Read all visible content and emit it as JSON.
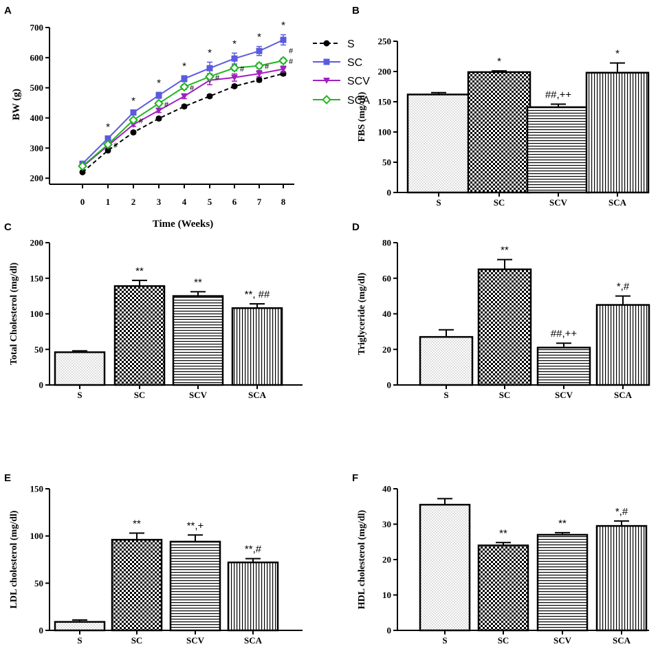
{
  "colors": {
    "S": "#000000",
    "SC": "#5b5bde",
    "SCV": "#a020c0",
    "SCA": "#22b522",
    "axis": "#000000"
  },
  "chart_data": [
    {
      "panel": "A",
      "type": "line",
      "xlabel": "Time (Weeks)",
      "ylabel": "BW (g)",
      "x": [
        0,
        1,
        2,
        3,
        4,
        5,
        6,
        7,
        8
      ],
      "x_ticks": [
        "0",
        "1",
        "2",
        "3",
        "4",
        "5",
        "6",
        "7",
        "8"
      ],
      "ylim": [
        180,
        700
      ],
      "y_ticks": [
        "200",
        "300",
        "400",
        "500",
        "600",
        "700"
      ],
      "legend_position": "right",
      "series": [
        {
          "name": "S",
          "marker": "circle",
          "dashed": true,
          "values": [
            220,
            292,
            352,
            398,
            438,
            472,
            505,
            526,
            547
          ],
          "errors": [
            4,
            4,
            5,
            5,
            5,
            5,
            5,
            6,
            6
          ]
        },
        {
          "name": "SC",
          "marker": "square",
          "dashed": false,
          "values": [
            248,
            332,
            418,
            475,
            530,
            565,
            597,
            622,
            659
          ],
          "errors": [
            5,
            6,
            7,
            10,
            10,
            20,
            18,
            15,
            17
          ]
        },
        {
          "name": "SCV",
          "marker": "triangle-down",
          "dashed": false,
          "values": [
            238,
            308,
            378,
            425,
            472,
            525,
            534,
            547,
            562
          ],
          "errors": [
            4,
            5,
            6,
            7,
            8,
            15,
            12,
            10,
            10
          ]
        },
        {
          "name": "SCA",
          "marker": "diamond",
          "dashed": false,
          "values": [
            240,
            312,
            393,
            448,
            503,
            537,
            566,
            573,
            590
          ],
          "errors": [
            4,
            5,
            6,
            7,
            8,
            10,
            9,
            9,
            8
          ]
        }
      ],
      "star_labels": [
        "",
        "*",
        "*",
        "*",
        "*",
        "*",
        "*",
        "*",
        "*"
      ],
      "hash_labels": [
        "",
        "#",
        "#",
        "#",
        "#",
        "#",
        "#",
        "#",
        "#"
      ],
      "extra_hash_label": "#"
    },
    {
      "panel": "B",
      "type": "bar",
      "ylabel": "FBS (mg/dl)",
      "ylim": [
        0,
        250
      ],
      "y_ticks": [
        "0",
        "50",
        "100",
        "150",
        "200",
        "250"
      ],
      "categories": [
        "S",
        "SC",
        "SCV",
        "SCA"
      ],
      "values": [
        162,
        199,
        141,
        198
      ],
      "errors": [
        3,
        2,
        5,
        16
      ],
      "annotations": [
        "",
        "*",
        "##,++",
        "*"
      ]
    },
    {
      "panel": "C",
      "type": "bar",
      "ylabel": "Total Cholesterol (mg/dl)",
      "ylim": [
        0,
        200
      ],
      "y_ticks": [
        "0",
        "50",
        "100",
        "150",
        "200"
      ],
      "categories": [
        "S",
        "SC",
        "SCV",
        "SCA"
      ],
      "values": [
        46,
        139,
        125,
        108
      ],
      "errors": [
        2,
        8,
        6,
        6
      ],
      "annotations": [
        "",
        "**",
        "**",
        "**, ##"
      ]
    },
    {
      "panel": "D",
      "type": "bar",
      "ylabel": "Triglyceride (mg/dl)",
      "ylim": [
        0,
        80
      ],
      "y_ticks": [
        "0",
        "20",
        "40",
        "60",
        "80"
      ],
      "categories": [
        "S",
        "SC",
        "SCV",
        "SCA"
      ],
      "values": [
        27,
        65,
        21,
        45
      ],
      "errors": [
        4,
        5.5,
        2.5,
        5
      ],
      "annotations": [
        "",
        "**",
        "##,++",
        "*,#"
      ]
    },
    {
      "panel": "E",
      "type": "bar",
      "ylabel": "LDL cholesterol (mg/dl)",
      "ylim": [
        0,
        150
      ],
      "y_ticks": [
        "0",
        "50",
        "100",
        "150"
      ],
      "categories": [
        "S",
        "SC",
        "SCV",
        "SCA"
      ],
      "values": [
        9,
        96,
        94,
        72
      ],
      "errors": [
        2,
        7,
        7,
        4
      ],
      "annotations": [
        "",
        "**",
        "**,+",
        "**,#"
      ]
    },
    {
      "panel": "F",
      "type": "bar",
      "ylabel": "HDL cholesterol (mg/dl)",
      "ylim": [
        0,
        40
      ],
      "y_ticks": [
        "0",
        "10",
        "20",
        "30",
        "40"
      ],
      "categories": [
        "S",
        "SC",
        "SCV",
        "SCA"
      ],
      "values": [
        35.5,
        24,
        27,
        29.5
      ],
      "errors": [
        1.7,
        0.8,
        0.6,
        1.4
      ],
      "annotations": [
        "",
        "**",
        "**",
        "*,#"
      ]
    }
  ]
}
